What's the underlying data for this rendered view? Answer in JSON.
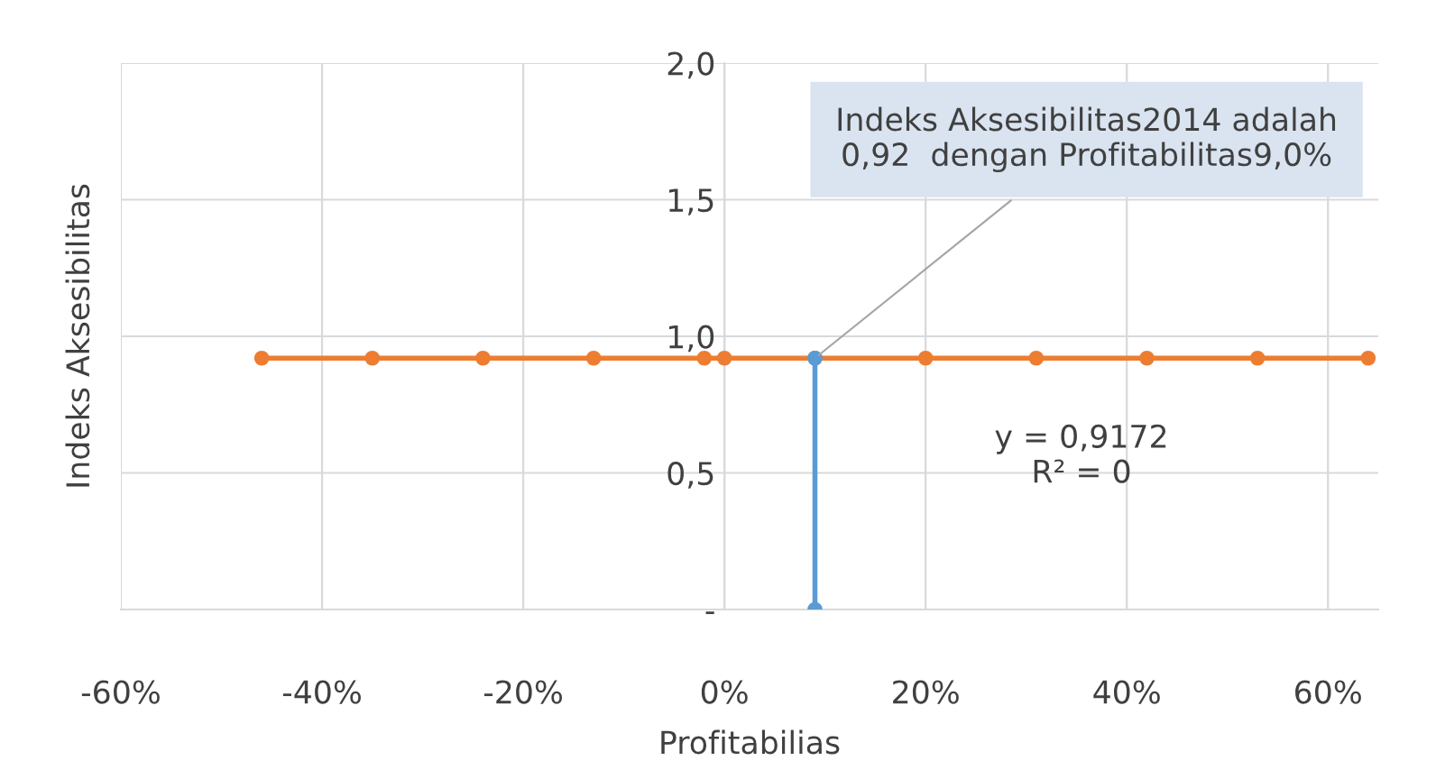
{
  "chart_data": {
    "type": "line",
    "xlabel": "Profitabilias",
    "ylabel": "Indeks Aksesibilitas",
    "series": [
      {
        "color": "#ed7d31",
        "marker": "circle",
        "x": [
          -0.46,
          -0.35,
          -0.24,
          -0.13,
          -0.02,
          0.0,
          0.09,
          0.2,
          0.31,
          0.42,
          0.53,
          0.64
        ],
        "values": [
          0.92,
          0.92,
          0.92,
          0.92,
          0.92,
          0.92,
          0.92,
          0.92,
          0.92,
          0.92,
          0.92,
          0.92
        ]
      },
      {
        "color": "#5b9bd5",
        "marker": "circle",
        "x": [
          0.09,
          0.09
        ],
        "values": [
          0,
          0.92
        ]
      }
    ],
    "xlim": [
      -0.6,
      0.65
    ],
    "xticks": [
      {
        "value": -0.6,
        "label": "-60%"
      },
      {
        "value": -0.4,
        "label": "-40%"
      },
      {
        "value": -0.2,
        "label": "-20%"
      },
      {
        "value": 0,
        "label": "0%"
      },
      {
        "value": 0.2,
        "label": "20%"
      },
      {
        "value": 0.4,
        "label": "40%"
      },
      {
        "value": 0.6,
        "label": "60%"
      }
    ],
    "ylim": [
      0,
      2
    ],
    "yticks": [
      {
        "value": 0,
        "label": "-"
      },
      {
        "value": 0.5,
        "label": "0,5"
      },
      {
        "value": 1.0,
        "label": "1,0"
      },
      {
        "value": 1.5,
        "label": "1,5"
      },
      {
        "value": 2.0,
        "label": "2,0"
      }
    ],
    "grid": true,
    "annotations": [
      {
        "text": "Indeks Aksesibilitas2014 adalah\n0,92  dengan Profitabilitas9,0%",
        "x": 0.09,
        "y": 0.92
      },
      "y = 0,9172\nR² = 0"
    ]
  }
}
